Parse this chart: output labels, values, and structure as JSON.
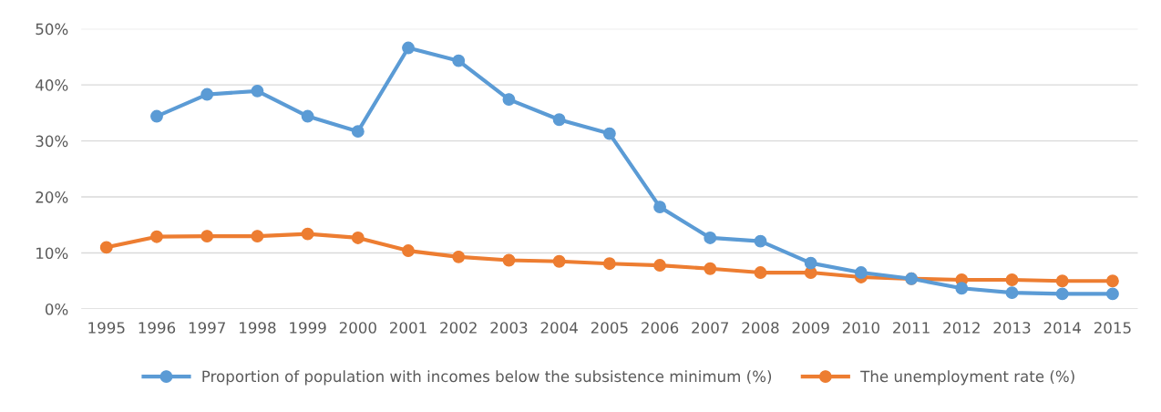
{
  "chart_data": {
    "type": "line",
    "categories": [
      "1995",
      "1996",
      "1997",
      "1998",
      "1999",
      "2000",
      "2001",
      "2002",
      "2003",
      "2004",
      "2005",
      "2006",
      "2007",
      "2008",
      "2009",
      "2010",
      "2011",
      "2012",
      "2013",
      "2014",
      "2015"
    ],
    "series": [
      {
        "name": "Proportion of population with incomes below the subsistence minimum (%)",
        "color": "#5b9bd5",
        "values": [
          null,
          34.4,
          38.3,
          38.9,
          34.4,
          31.7,
          46.6,
          44.3,
          37.4,
          33.8,
          31.3,
          18.2,
          12.7,
          12.1,
          8.2,
          6.5,
          5.4,
          3.7,
          2.9,
          2.7,
          2.7
        ]
      },
      {
        "name": "The unemployment rate (%)",
        "color": "#ed7d31",
        "values": [
          11.0,
          12.9,
          13.0,
          13.0,
          13.4,
          12.7,
          10.4,
          9.3,
          8.7,
          8.5,
          8.1,
          7.8,
          7.2,
          6.5,
          6.5,
          5.7,
          5.4,
          5.2,
          5.2,
          5.0,
          5.0
        ]
      }
    ],
    "ylim": [
      0,
      50
    ],
    "yticks": [
      {
        "value": 0,
        "label": "0%"
      },
      {
        "value": 10,
        "label": "10%"
      },
      {
        "value": 20,
        "label": "20%"
      },
      {
        "value": 30,
        "label": "30%"
      },
      {
        "value": 40,
        "label": "40%"
      },
      {
        "value": 50,
        "label": "50%"
      }
    ],
    "grid": "y",
    "legend": "bottom",
    "marker": "circle",
    "line_style": "solid"
  }
}
